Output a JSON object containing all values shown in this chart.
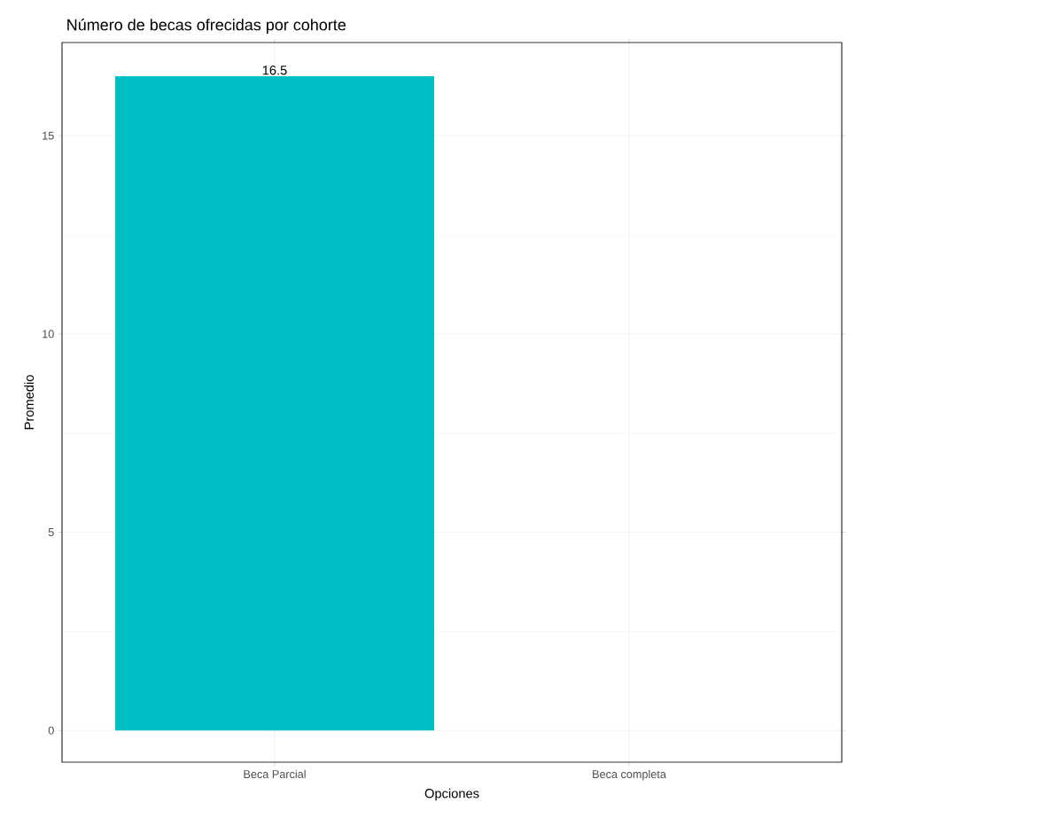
{
  "chart_data": {
    "type": "bar",
    "title": "Número de becas ofrecidas por cohorte",
    "xlabel": "Opciones",
    "ylabel": "Promedio",
    "categories": [
      "Beca Parcial",
      "Beca completa"
    ],
    "values": [
      16.5,
      null
    ],
    "value_labels": [
      "16.5",
      null
    ],
    "color": "#00bfc4",
    "ylim": [
      -0.8,
      17.35
    ],
    "yticks": [
      0,
      5,
      10,
      15
    ],
    "grid": true
  }
}
